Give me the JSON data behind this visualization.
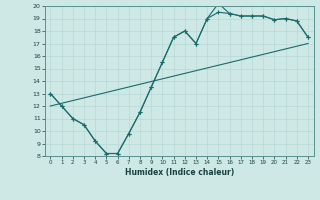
{
  "xlabel": "Humidex (Indice chaleur)",
  "xlim": [
    -0.5,
    23.5
  ],
  "ylim": [
    8,
    20
  ],
  "xticks": [
    0,
    1,
    2,
    3,
    4,
    5,
    6,
    7,
    8,
    9,
    10,
    11,
    12,
    13,
    14,
    15,
    16,
    17,
    18,
    19,
    20,
    21,
    22,
    23
  ],
  "yticks": [
    8,
    9,
    10,
    11,
    12,
    13,
    14,
    15,
    16,
    17,
    18,
    19,
    20
  ],
  "background_color": "#cde8e5",
  "grid_color": "#b8d8d5",
  "line_color": "#1a6b6b",
  "line1_x": [
    0,
    1,
    2,
    3,
    4,
    5,
    6,
    7,
    8,
    9,
    10,
    11,
    12,
    13,
    14,
    15,
    16,
    17,
    18,
    19,
    20,
    21,
    22,
    23
  ],
  "line1_y": [
    13,
    12,
    11,
    10.5,
    9.2,
    8.2,
    8.2,
    9.8,
    11.5,
    13.5,
    15.5,
    17.5,
    18.0,
    17.0,
    19.0,
    20.2,
    19.4,
    19.2,
    19.2,
    19.2,
    18.9,
    19.0,
    18.8,
    17.5
  ],
  "line2_x": [
    0,
    1,
    2,
    3,
    4,
    5,
    6,
    7,
    8,
    9,
    10,
    11,
    12,
    13,
    14,
    15,
    16,
    17,
    18,
    19,
    20,
    21,
    22,
    23
  ],
  "line2_y": [
    13,
    12,
    11,
    10.5,
    9.2,
    8.2,
    8.2,
    9.8,
    11.5,
    13.5,
    15.5,
    17.5,
    18.0,
    17.0,
    19.0,
    19.5,
    19.4,
    19.2,
    19.2,
    19.2,
    18.9,
    19.0,
    18.8,
    17.5
  ],
  "line3_x": [
    0,
    23
  ],
  "line3_y": [
    12.0,
    17.0
  ]
}
